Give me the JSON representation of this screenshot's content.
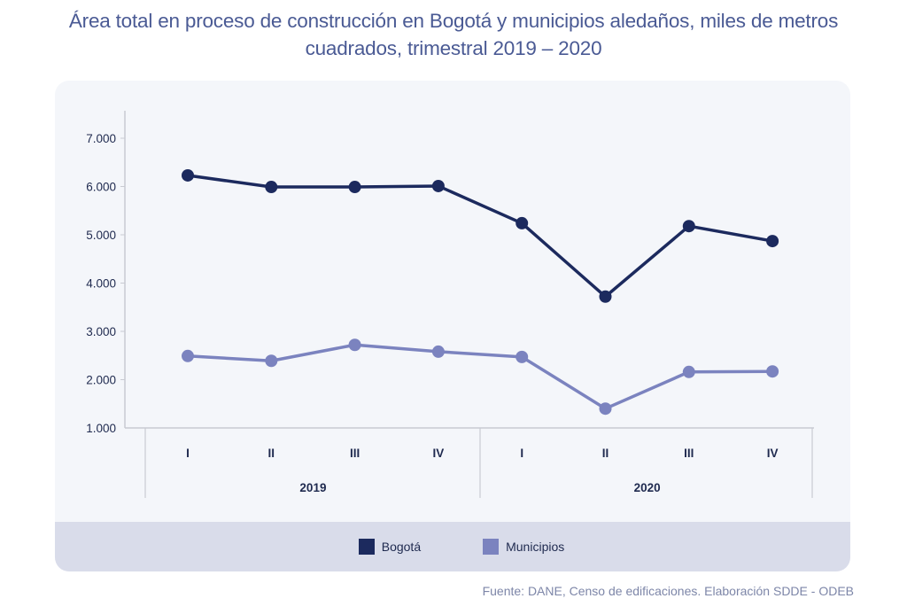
{
  "title_line1": "Área total en proceso de construcción en Bogotá y municipios aledaños, miles de metros",
  "title_line2": "cuadrados, trimestral 2019 – 2020",
  "source": "Fuente: DANE, Censo de edificaciones. Elaboración SDDE - ODEB",
  "colors": {
    "bogota": "#1c2a5e",
    "municipios": "#7b83bf",
    "axis": "#c8cad2"
  },
  "chart_data": {
    "type": "line",
    "title": "Área total en proceso de construcción en Bogotá y municipios aledaños, miles de metros cuadrados, trimestral 2019 – 2020",
    "xlabel": "",
    "ylabel": "",
    "ylim": [
      1000,
      7500
    ],
    "yticks": [
      1000,
      2000,
      3000,
      4000,
      5000,
      6000,
      7000
    ],
    "ytick_labels": [
      "1.000",
      "2.000",
      "3.000",
      "4.000",
      "5.000",
      "6.000",
      "7.000"
    ],
    "categories": [
      "I",
      "II",
      "III",
      "IV",
      "I",
      "II",
      "III",
      "IV"
    ],
    "groups": [
      {
        "label": "2019",
        "count": 4
      },
      {
        "label": "2020",
        "count": 4
      }
    ],
    "grid": false,
    "legend_position": "bottom",
    "series": [
      {
        "name": "Bogotá",
        "values": [
          6230,
          5990,
          5990,
          6010,
          5240,
          3720,
          5180,
          4870
        ]
      },
      {
        "name": "Municipios",
        "values": [
          2490,
          2390,
          2720,
          2580,
          2470,
          1400,
          2160,
          2170
        ]
      }
    ]
  }
}
